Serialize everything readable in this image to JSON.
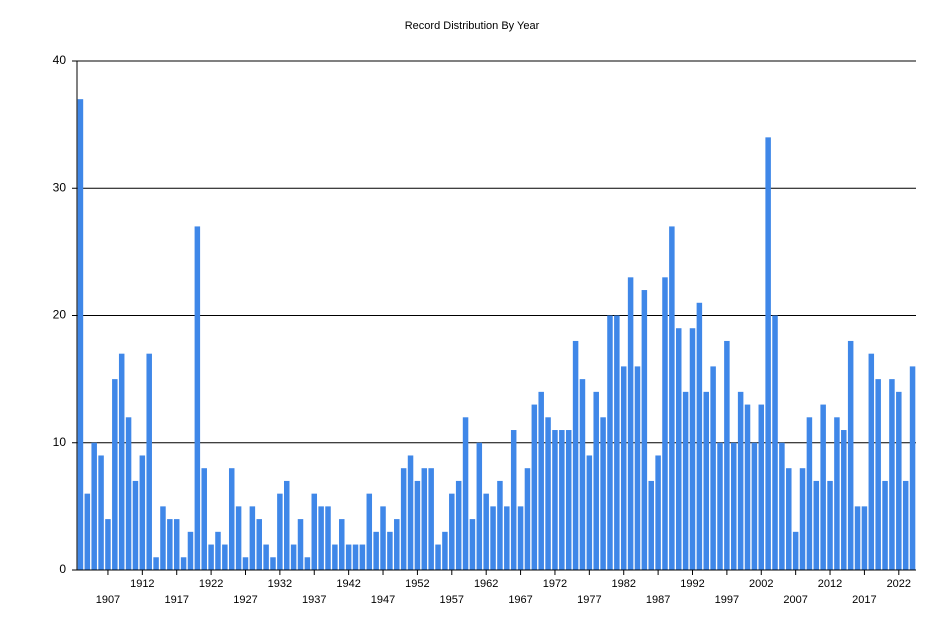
{
  "chart_data": {
    "type": "bar",
    "title": "Record Distribution By Year",
    "categories": [
      null,
      null,
      null,
      null,
      "1907",
      null,
      null,
      null,
      null,
      "1912",
      null,
      null,
      null,
      null,
      "1917",
      null,
      null,
      null,
      null,
      "1922",
      null,
      null,
      null,
      null,
      "1927",
      null,
      null,
      null,
      null,
      "1932",
      null,
      null,
      null,
      null,
      "1937",
      null,
      null,
      null,
      null,
      "1942",
      null,
      null,
      null,
      null,
      "1947",
      null,
      null,
      null,
      null,
      "1952",
      null,
      null,
      null,
      null,
      "1957",
      null,
      null,
      null,
      null,
      "1962",
      null,
      null,
      null,
      null,
      "1967",
      null,
      null,
      null,
      null,
      "1972",
      null,
      null,
      null,
      null,
      "1977",
      null,
      null,
      null,
      null,
      "1982",
      null,
      null,
      null,
      null,
      "1987",
      null,
      null,
      null,
      null,
      "1992",
      null,
      null,
      null,
      null,
      "1997",
      null,
      null,
      null,
      null,
      "2002",
      null,
      null,
      null,
      null,
      "2007",
      null,
      null,
      null,
      null,
      "2012",
      null,
      null,
      null,
      null,
      "2017",
      null,
      null,
      null,
      null,
      "2022",
      null,
      null
    ],
    "values": [
      37,
      6,
      10,
      9,
      4,
      15,
      17,
      12,
      7,
      9,
      17,
      1,
      5,
      4,
      4,
      1,
      3,
      27,
      8,
      2,
      3,
      2,
      8,
      5,
      1,
      5,
      4,
      2,
      1,
      6,
      7,
      2,
      4,
      1,
      6,
      5,
      5,
      2,
      4,
      2,
      2,
      2,
      6,
      3,
      5,
      3,
      4,
      8,
      9,
      7,
      8,
      8,
      2,
      3,
      6,
      7,
      12,
      4,
      10,
      6,
      5,
      7,
      5,
      11,
      5,
      8,
      13,
      14,
      12,
      11,
      11,
      11,
      18,
      15,
      9,
      14,
      12,
      20,
      20,
      16,
      23,
      16,
      22,
      7,
      9,
      23,
      27,
      19,
      14,
      19,
      21,
      14,
      16,
      10,
      18,
      10,
      14,
      13,
      10,
      13,
      34,
      20,
      10,
      8,
      3,
      8,
      12,
      7,
      13,
      7,
      12,
      11,
      18,
      5,
      5,
      17,
      15,
      7,
      15,
      14,
      7,
      16
    ],
    "color": "#3f87e8",
    "ylim": [
      0,
      40
    ],
    "yticks": [
      0,
      10,
      20,
      30,
      40
    ],
    "grid": true
  }
}
